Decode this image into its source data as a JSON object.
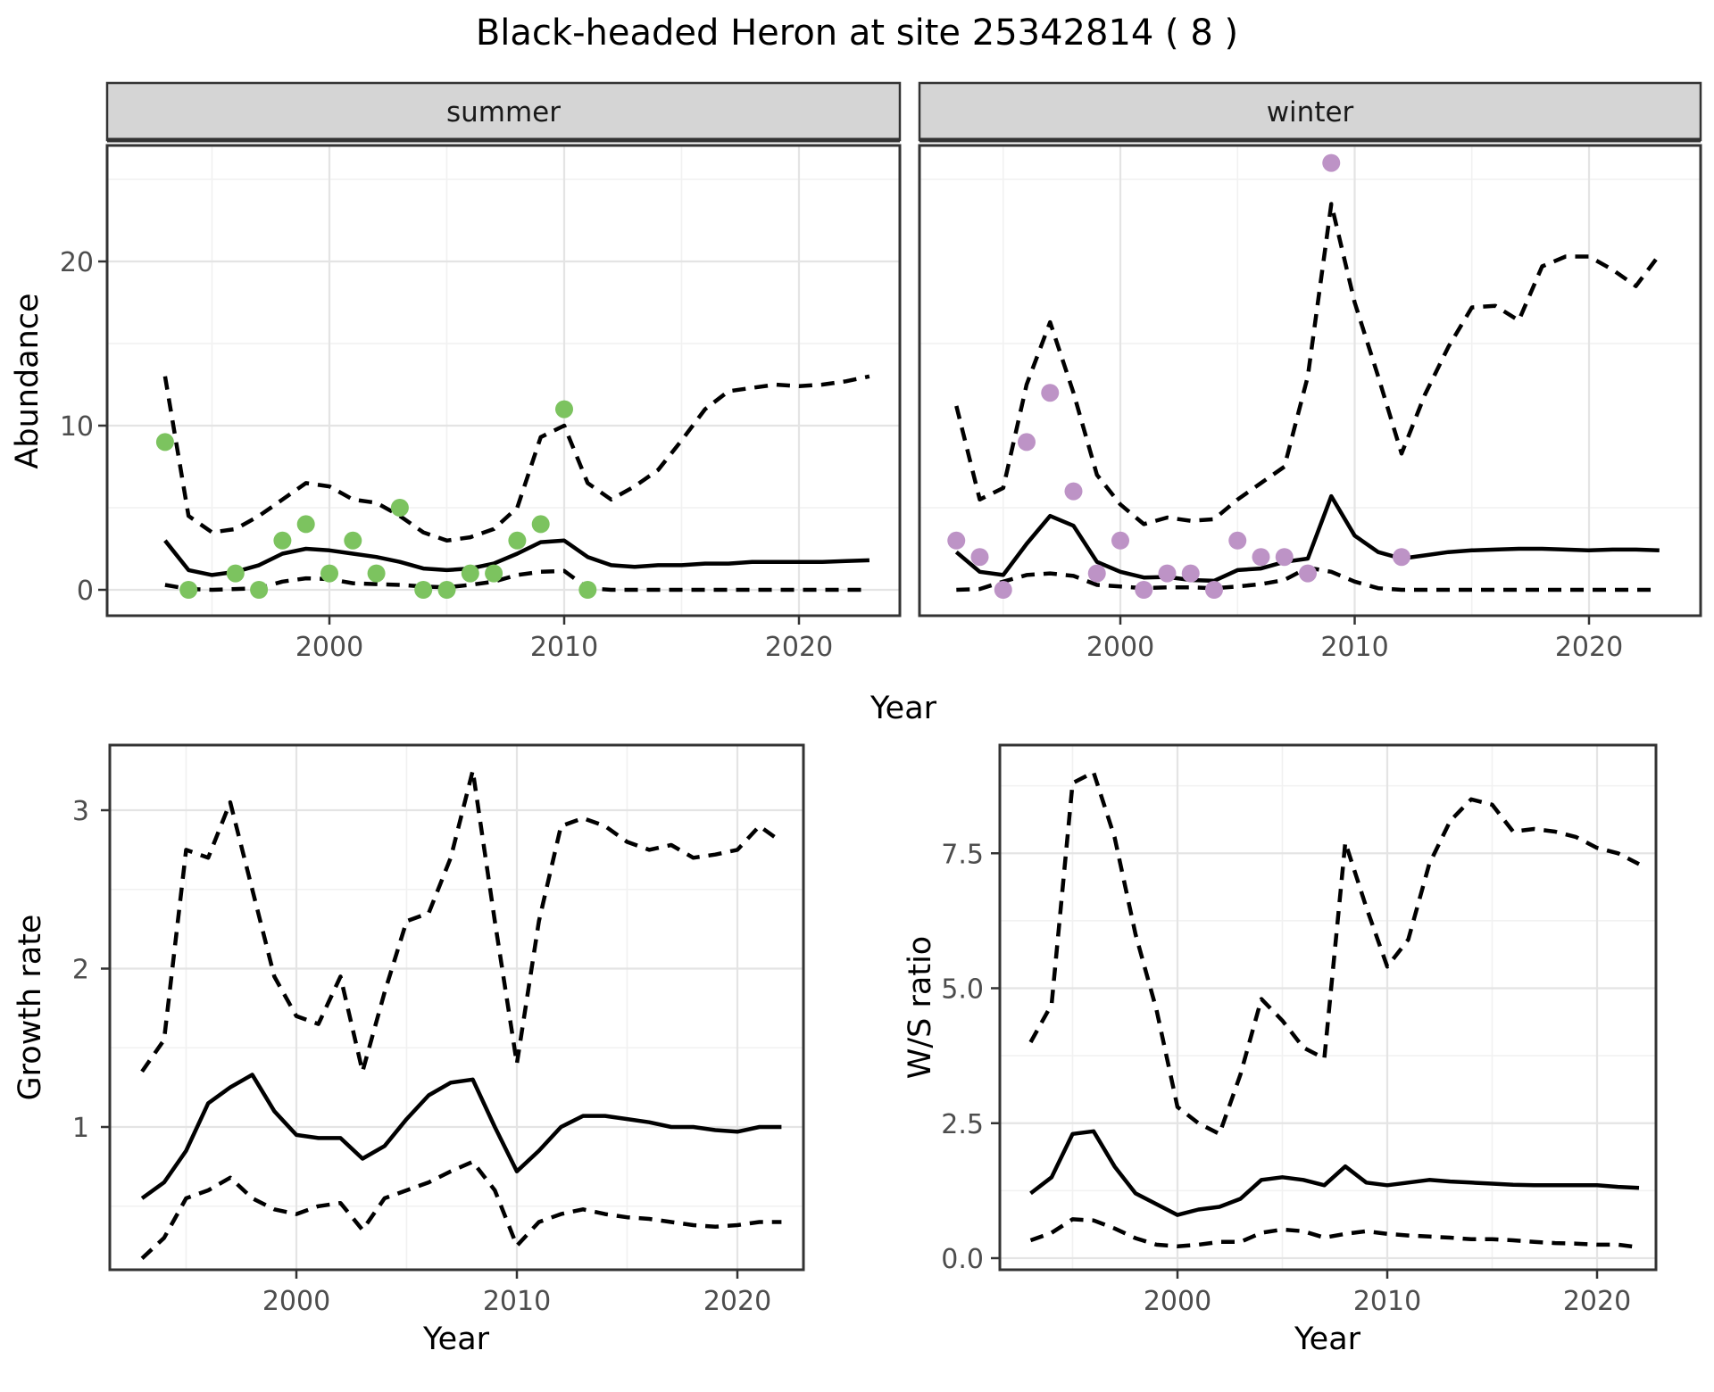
{
  "title": "Black-headed Heron at site 25342814 ( 8 )",
  "style": {
    "summer_point_color": "#7CC35F",
    "winter_point_color": "#BD93C6",
    "line_color": "#000000",
    "strip_bg": "#D5D5D5",
    "panel_border": "#333333",
    "grid_major": "#E4E4E4",
    "grid_minor": "#F1F1F1",
    "tick_text_color": "#4d4d4d"
  },
  "chart_data": [
    {
      "id": "abundance-summer",
      "type": "line",
      "facet_label": "summer",
      "ylabel": "Abundance",
      "xlabel": "Year",
      "x_ticks": [
        "2000",
        "2010",
        "2020"
      ],
      "x_tick_years": [
        2000,
        2010,
        2020
      ],
      "y_ticks": [
        "0",
        "10",
        "20"
      ],
      "y_tick_values": [
        0,
        10,
        20
      ],
      "xlim": [
        1990.5,
        2024.4
      ],
      "ylim": [
        0,
        27
      ],
      "legend": "off",
      "observations": {
        "years": [
          1993,
          1994,
          1996,
          1997,
          1998,
          1999,
          2000,
          2001,
          2002,
          2003,
          2004,
          2005,
          2006,
          2007,
          2008,
          2009,
          2010,
          2011
        ],
        "values": [
          9,
          0,
          1,
          0,
          3,
          4,
          1,
          3,
          1,
          5,
          0,
          0,
          1,
          1,
          3,
          4,
          11,
          0
        ]
      },
      "median": {
        "years": [
          1993,
          1994,
          1995,
          1996,
          1997,
          1998,
          1999,
          2000,
          2001,
          2002,
          2003,
          2004,
          2005,
          2006,
          2007,
          2008,
          2009,
          2010,
          2011,
          2012,
          2013,
          2014,
          2015,
          2016,
          2017,
          2018,
          2019,
          2020,
          2021,
          2022,
          2023
        ],
        "values": [
          3.0,
          1.2,
          0.9,
          1.1,
          1.5,
          2.2,
          2.5,
          2.4,
          2.2,
          2.0,
          1.7,
          1.3,
          1.2,
          1.3,
          1.6,
          2.2,
          2.9,
          3.0,
          2.0,
          1.5,
          1.4,
          1.5,
          1.5,
          1.6,
          1.6,
          1.7,
          1.7,
          1.7,
          1.7,
          1.75,
          1.8
        ]
      },
      "upper_ci": {
        "years": [
          1993,
          1994,
          1995,
          1996,
          1997,
          1998,
          1999,
          2000,
          2001,
          2002,
          2003,
          2004,
          2005,
          2006,
          2007,
          2008,
          2009,
          2010,
          2011,
          2012,
          2013,
          2014,
          2015,
          2016,
          2017,
          2018,
          2019,
          2020,
          2021,
          2022,
          2023
        ],
        "values": [
          13,
          4.5,
          3.5,
          3.7,
          4.5,
          5.5,
          6.5,
          6.3,
          5.5,
          5.3,
          4.5,
          3.5,
          3.0,
          3.2,
          3.7,
          5.0,
          9.3,
          10.0,
          6.5,
          5.5,
          6.3,
          7.3,
          9.1,
          11.0,
          12.1,
          12.3,
          12.5,
          12.4,
          12.5,
          12.7,
          13.0
        ]
      },
      "lower_ci": {
        "years": [
          1993,
          1994,
          1995,
          1996,
          1997,
          1998,
          1999,
          2000,
          2001,
          2002,
          2003,
          2004,
          2005,
          2006,
          2007,
          2008,
          2009,
          2010,
          2011,
          2012,
          2013,
          2014,
          2015,
          2016,
          2017,
          2018,
          2019,
          2020,
          2021,
          2022,
          2023
        ],
        "values": [
          0.3,
          0.05,
          0.0,
          0.05,
          0.1,
          0.5,
          0.7,
          0.65,
          0.4,
          0.35,
          0.3,
          0.2,
          0.15,
          0.3,
          0.5,
          0.9,
          1.1,
          1.15,
          0.1,
          0,
          0,
          0,
          0,
          0,
          0,
          0,
          0,
          0,
          0,
          0,
          0
        ]
      }
    },
    {
      "id": "abundance-winter",
      "type": "line",
      "facet_label": "winter",
      "ylabel": "Abundance",
      "xlabel": "Year",
      "x_ticks": [
        "2000",
        "2010",
        "2020"
      ],
      "x_tick_years": [
        2000,
        2010,
        2020
      ],
      "y_ticks": [],
      "y_tick_values": [],
      "xlim": [
        1991.4,
        2024.8
      ],
      "ylim": [
        0,
        27
      ],
      "legend": "off",
      "observations": {
        "years": [
          1993,
          1994,
          1995,
          1996,
          1997,
          1998,
          1999,
          2000,
          2001,
          2002,
          2003,
          2004,
          2005,
          2006,
          2007,
          2008,
          2009,
          2012
        ],
        "values": [
          3,
          2,
          0,
          9,
          12,
          6,
          1,
          3,
          0,
          1,
          1,
          0,
          3,
          2,
          2,
          1,
          26,
          2
        ]
      },
      "median": {
        "years": [
          1993,
          1994,
          1995,
          1996,
          1997,
          1998,
          1999,
          2000,
          2001,
          2002,
          2003,
          2004,
          2005,
          2006,
          2007,
          2008,
          2009,
          2010,
          2011,
          2012,
          2013,
          2014,
          2015,
          2016,
          2017,
          2018,
          2019,
          2020,
          2021,
          2022,
          2023
        ],
        "values": [
          2.3,
          1.1,
          0.9,
          2.8,
          4.5,
          3.9,
          1.7,
          1.1,
          0.75,
          0.78,
          0.6,
          0.55,
          1.2,
          1.3,
          1.7,
          1.9,
          5.7,
          3.3,
          2.3,
          1.9,
          2.1,
          2.3,
          2.4,
          2.45,
          2.5,
          2.5,
          2.45,
          2.4,
          2.45,
          2.45,
          2.4
        ]
      },
      "upper_ci": {
        "years": [
          1993,
          1994,
          1995,
          1996,
          1997,
          1998,
          1999,
          2000,
          2001,
          2002,
          2003,
          2004,
          2005,
          2006,
          2007,
          2008,
          2009,
          2010,
          2011,
          2012,
          2013,
          2014,
          2015,
          2016,
          2017,
          2018,
          2019,
          2020,
          2021,
          2022,
          2023
        ],
        "values": [
          11.2,
          5.5,
          6.2,
          12.5,
          16.3,
          12.0,
          7.0,
          5.2,
          4.0,
          4.4,
          4.2,
          4.3,
          5.5,
          6.5,
          7.5,
          13.0,
          23.5,
          17.5,
          13.0,
          8.3,
          11.9,
          14.8,
          17.2,
          17.3,
          16.4,
          19.7,
          20.3,
          20.3,
          19.5,
          18.5,
          20.4
        ]
      },
      "lower_ci": {
        "years": [
          1993,
          1994,
          1995,
          1996,
          1997,
          1998,
          1999,
          2000,
          2001,
          2002,
          2003,
          2004,
          2005,
          2006,
          2007,
          2008,
          2009,
          2010,
          2011,
          2012,
          2013,
          2014,
          2015,
          2016,
          2017,
          2018,
          2019,
          2020,
          2021,
          2022,
          2023
        ],
        "values": [
          0.0,
          0.05,
          0.5,
          0.9,
          1.0,
          0.85,
          0.3,
          0.2,
          0.1,
          0.15,
          0.15,
          0.1,
          0.2,
          0.35,
          0.6,
          1.35,
          1.1,
          0.5,
          0.1,
          0,
          0,
          0,
          0,
          0,
          0,
          0,
          0,
          0,
          0,
          0,
          0
        ]
      }
    },
    {
      "id": "growth-rate",
      "type": "line",
      "facet_label": "",
      "ylabel": "Growth rate",
      "xlabel": "Year",
      "x_ticks": [
        "2000",
        "2010",
        "2020"
      ],
      "x_tick_years": [
        2000,
        2010,
        2020
      ],
      "y_ticks": [
        "1",
        "2",
        "3"
      ],
      "y_tick_values": [
        1,
        2,
        3
      ],
      "xlim": [
        1991.5,
        2023.0
      ],
      "ylim": [
        0.1,
        3.4
      ],
      "legend": "off",
      "observations": {
        "years": [],
        "values": []
      },
      "median": {
        "years": [
          1993,
          1994,
          1995,
          1996,
          1997,
          1998,
          1999,
          2000,
          2001,
          2002,
          2003,
          2004,
          2005,
          2006,
          2007,
          2008,
          2009,
          2010,
          2011,
          2012,
          2013,
          2014,
          2015,
          2016,
          2017,
          2018,
          2019,
          2020,
          2021,
          2022
        ],
        "values": [
          0.55,
          0.65,
          0.85,
          1.15,
          1.25,
          1.33,
          1.1,
          0.95,
          0.93,
          0.93,
          0.8,
          0.88,
          1.05,
          1.2,
          1.28,
          1.3,
          1.0,
          0.72,
          0.85,
          1.0,
          1.07,
          1.07,
          1.05,
          1.03,
          1.0,
          1.0,
          0.98,
          0.97,
          1.0,
          1.0
        ]
      },
      "upper_ci": {
        "years": [
          1993,
          1994,
          1995,
          1996,
          1997,
          1998,
          1999,
          2000,
          2001,
          2002,
          2003,
          2004,
          2005,
          2006,
          2007,
          2008,
          2009,
          2010,
          2011,
          2012,
          2013,
          2014,
          2015,
          2016,
          2017,
          2018,
          2019,
          2020,
          2021,
          2022
        ],
        "values": [
          1.35,
          1.55,
          2.75,
          2.7,
          3.05,
          2.5,
          1.95,
          1.7,
          1.65,
          1.95,
          1.35,
          1.85,
          2.3,
          2.35,
          2.7,
          3.25,
          2.3,
          1.4,
          2.3,
          2.9,
          2.95,
          2.9,
          2.8,
          2.75,
          2.78,
          2.7,
          2.72,
          2.75,
          2.9,
          2.8
        ]
      },
      "lower_ci": {
        "years": [
          1993,
          1994,
          1995,
          1996,
          1997,
          1998,
          1999,
          2000,
          2001,
          2002,
          2003,
          2004,
          2005,
          2006,
          2007,
          2008,
          2009,
          2010,
          2011,
          2012,
          2013,
          2014,
          2015,
          2016,
          2017,
          2018,
          2019,
          2020,
          2021,
          2022
        ],
        "values": [
          0.17,
          0.3,
          0.55,
          0.6,
          0.68,
          0.55,
          0.48,
          0.45,
          0.5,
          0.52,
          0.35,
          0.55,
          0.6,
          0.65,
          0.72,
          0.78,
          0.6,
          0.25,
          0.4,
          0.45,
          0.48,
          0.45,
          0.43,
          0.42,
          0.4,
          0.38,
          0.37,
          0.38,
          0.4,
          0.4
        ]
      }
    },
    {
      "id": "ws-ratio",
      "type": "line",
      "facet_label": "",
      "ylabel": "W/S ratio",
      "xlabel": "Year",
      "x_ticks": [
        "2000",
        "2010",
        "2020"
      ],
      "x_tick_years": [
        2000,
        2010,
        2020
      ],
      "y_ticks": [
        "0.0",
        "2.5",
        "5.0",
        "7.5"
      ],
      "y_tick_values": [
        0,
        2.5,
        5,
        7.5
      ],
      "xlim": [
        1991.5,
        2022.8
      ],
      "ylim": [
        -0.2,
        9.5
      ],
      "legend": "off",
      "observations": {
        "years": [],
        "values": []
      },
      "median": {
        "years": [
          1993,
          1994,
          1995,
          1996,
          1997,
          1998,
          1999,
          2000,
          2001,
          2002,
          2003,
          2004,
          2005,
          2006,
          2007,
          2008,
          2009,
          2010,
          2011,
          2012,
          2013,
          2014,
          2015,
          2016,
          2017,
          2018,
          2019,
          2020,
          2021,
          2022
        ],
        "values": [
          1.2,
          1.5,
          2.3,
          2.35,
          1.7,
          1.2,
          1.0,
          0.8,
          0.9,
          0.95,
          1.1,
          1.45,
          1.5,
          1.45,
          1.35,
          1.7,
          1.4,
          1.35,
          1.4,
          1.45,
          1.42,
          1.4,
          1.38,
          1.36,
          1.35,
          1.35,
          1.35,
          1.35,
          1.32,
          1.3
        ]
      },
      "upper_ci": {
        "years": [
          1993,
          1994,
          1995,
          1996,
          1997,
          1998,
          1999,
          2000,
          2001,
          2002,
          2003,
          2004,
          2005,
          2006,
          2007,
          2008,
          2009,
          2010,
          2011,
          2012,
          2013,
          2014,
          2015,
          2016,
          2017,
          2018,
          2019,
          2020,
          2021,
          2022
        ],
        "values": [
          4.0,
          4.7,
          8.8,
          9.0,
          7.8,
          6.0,
          4.6,
          2.8,
          2.5,
          2.3,
          3.4,
          4.8,
          4.4,
          3.9,
          3.7,
          7.7,
          6.5,
          5.4,
          5.9,
          7.3,
          8.1,
          8.5,
          8.4,
          7.9,
          7.95,
          7.9,
          7.8,
          7.6,
          7.5,
          7.3
        ]
      },
      "lower_ci": {
        "years": [
          1993,
          1994,
          1995,
          1996,
          1997,
          1998,
          1999,
          2000,
          2001,
          2002,
          2003,
          2004,
          2005,
          2006,
          2007,
          2008,
          2009,
          2010,
          2011,
          2012,
          2013,
          2014,
          2015,
          2016,
          2017,
          2018,
          2019,
          2020,
          2021,
          2022
        ],
        "values": [
          0.33,
          0.47,
          0.72,
          0.7,
          0.55,
          0.37,
          0.25,
          0.22,
          0.25,
          0.3,
          0.3,
          0.47,
          0.53,
          0.5,
          0.38,
          0.45,
          0.5,
          0.45,
          0.42,
          0.4,
          0.38,
          0.35,
          0.35,
          0.33,
          0.3,
          0.28,
          0.27,
          0.25,
          0.25,
          0.2
        ]
      }
    }
  ]
}
